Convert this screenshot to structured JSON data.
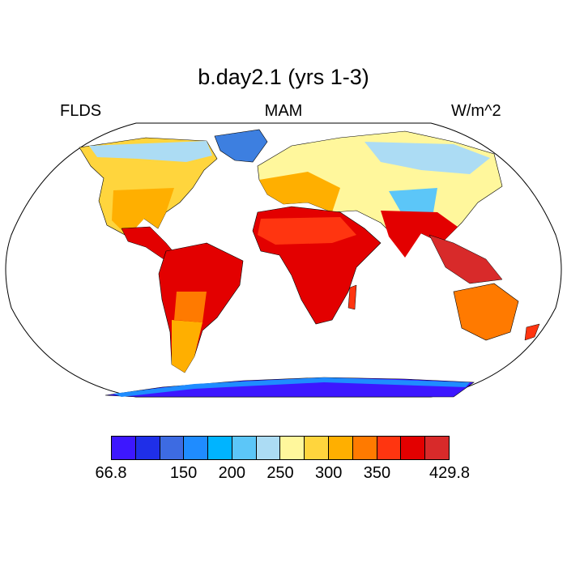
{
  "title": "b.day2.1 (yrs 1-3)",
  "left_label": "FLDS",
  "center_label": "MAM",
  "right_label": "W/m^2",
  "colorbar": {
    "colors": [
      "#3d17ff",
      "#1f2fe8",
      "#3d6be2",
      "#1f8cff",
      "#00b4ff",
      "#5cc6f8",
      "#acdcf4",
      "#fff79c",
      "#ffd53d",
      "#ffaf00",
      "#ff7a00",
      "#ff3510",
      "#e30000",
      "#d82a2a"
    ],
    "tick_labels": [
      "66.8",
      "150",
      "200",
      "250",
      "300",
      "350",
      "429.8"
    ],
    "tick_positions_index": [
      0,
      3,
      5,
      7,
      9,
      11,
      14
    ]
  },
  "chart_data": {
    "type": "heatmap",
    "title": "b.day2.1 (yrs 1-3)",
    "variable": "FLDS",
    "season": "MAM",
    "units": "W/m^2",
    "projection": "Robinson",
    "range": [
      66.8,
      429.8
    ],
    "levels": [
      66.8,
      150,
      200,
      250,
      300,
      350,
      429.8
    ]
  }
}
